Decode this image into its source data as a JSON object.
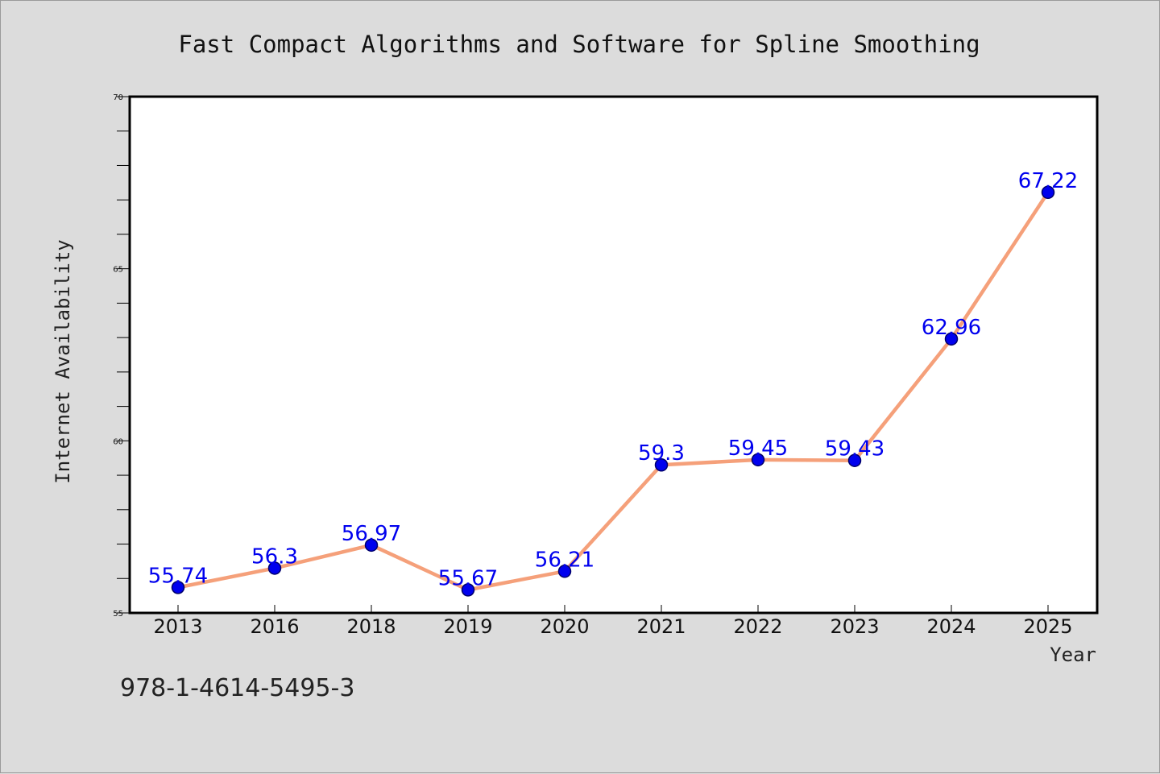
{
  "chart_data": {
    "type": "line",
    "title": "Fast Compact Algorithms and Software for Spline Smoothing",
    "xlabel": "Year",
    "ylabel": "Internet Availability",
    "categories": [
      "2013",
      "2016",
      "2018",
      "2019",
      "2020",
      "2021",
      "2022",
      "2023",
      "2024",
      "2025"
    ],
    "series": [
      {
        "values": [
          55.74,
          56.3,
          56.97,
          55.67,
          56.21,
          59.3,
          59.45,
          59.43,
          62.96,
          67.22
        ],
        "data_labels": [
          "55.74",
          "56.3",
          "56.97",
          "55.67",
          "56.21",
          "59.3",
          "59.45",
          "59.43",
          "62.96",
          "67.22"
        ]
      }
    ],
    "ylim": [
      55,
      70
    ],
    "y_major_ticks": [
      55,
      60,
      65,
      70
    ],
    "y_minor_step": 1,
    "grid": false,
    "legend": "none",
    "colors": {
      "line": "#f5a07a",
      "marker": "#0000ee",
      "marker_edge": "#00006a",
      "data_label": "#0000ee",
      "plot_background": "#ffffff",
      "figure_background": "#dcdcdc"
    }
  },
  "footnote": "978-1-4614-5495-3"
}
